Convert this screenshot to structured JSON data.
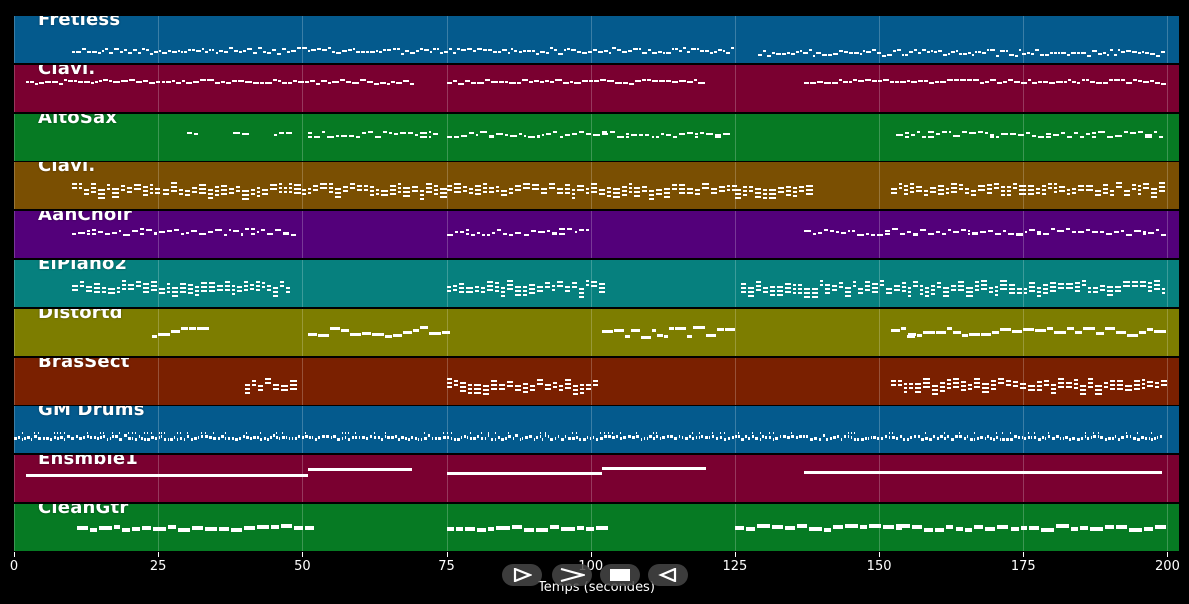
{
  "colors": {
    "background": "#000000",
    "track_colors": [
      "#045a8d",
      "#7a0030",
      "#067a23",
      "#7a4f02",
      "#53007a",
      "#06807e",
      "#7d7d00",
      "#7a2000",
      "#045a8d",
      "#7a0030",
      "#067a23"
    ],
    "note": "#ffffff"
  },
  "axis": {
    "ticks": [
      "0",
      "25",
      "50",
      "75",
      "100",
      "125",
      "150",
      "175",
      "200"
    ],
    "xlabel": "Temps (secondes)"
  },
  "controls": [
    {
      "name": "play-icon"
    },
    {
      "name": "fast-forward-icon"
    },
    {
      "name": "stop-icon"
    },
    {
      "name": "rewind-icon"
    }
  ],
  "chart_data": {
    "type": "piano-roll",
    "x_unit": "seconds",
    "xlim": [
      0,
      202
    ],
    "grid": true,
    "tracks": [
      {
        "name": "Fretless",
        "segments": [
          [
            10,
            125
          ],
          [
            129,
            199
          ]
        ],
        "style": "dense-line"
      },
      {
        "name": "Clavi.",
        "segments": [
          [
            2,
            69
          ],
          [
            75,
            120
          ],
          [
            137,
            199
          ]
        ],
        "style": "line"
      },
      {
        "name": "AltoSax",
        "segments": [
          [
            30,
            32
          ],
          [
            38,
            41
          ],
          [
            45,
            48
          ],
          [
            51,
            73
          ],
          [
            75,
            102
          ],
          [
            102,
            123
          ],
          [
            153,
            199
          ]
        ],
        "style": "phrases"
      },
      {
        "name": "Clavi.",
        "segments": [
          [
            10,
            50
          ],
          [
            50,
            75
          ],
          [
            75,
            125
          ],
          [
            125,
            138
          ],
          [
            152,
            199
          ]
        ],
        "style": "chords"
      },
      {
        "name": "AahChoir",
        "segments": [
          [
            10,
            49
          ],
          [
            75,
            100
          ],
          [
            137,
            199
          ]
        ],
        "style": "phrases"
      },
      {
        "name": "ElPiano2",
        "segments": [
          [
            10,
            48
          ],
          [
            75,
            102
          ],
          [
            126,
            199
          ]
        ],
        "style": "chords"
      },
      {
        "name": "Distortd",
        "segments": [
          [
            24,
            32
          ],
          [
            51,
            75
          ],
          [
            102,
            125
          ],
          [
            152,
            155
          ],
          [
            155,
            199
          ]
        ],
        "style": "lead"
      },
      {
        "name": "BrasSect",
        "segments": [
          [
            40,
            48
          ],
          [
            75,
            101
          ],
          [
            152,
            199
          ]
        ],
        "style": "chords"
      },
      {
        "name": "GM Drums",
        "segments": [
          [
            0,
            199
          ]
        ],
        "style": "drums"
      },
      {
        "name": "Ensmble1",
        "segments": [
          [
            2,
            51
          ],
          [
            51,
            69
          ],
          [
            75,
            102
          ],
          [
            102,
            120
          ],
          [
            137,
            199
          ]
        ],
        "style": "sustain"
      },
      {
        "name": "CleanGtr",
        "segments": [
          [
            11,
            51
          ],
          [
            75,
            102
          ],
          [
            125,
            153
          ],
          [
            153,
            199
          ]
        ],
        "style": "strum"
      }
    ]
  }
}
